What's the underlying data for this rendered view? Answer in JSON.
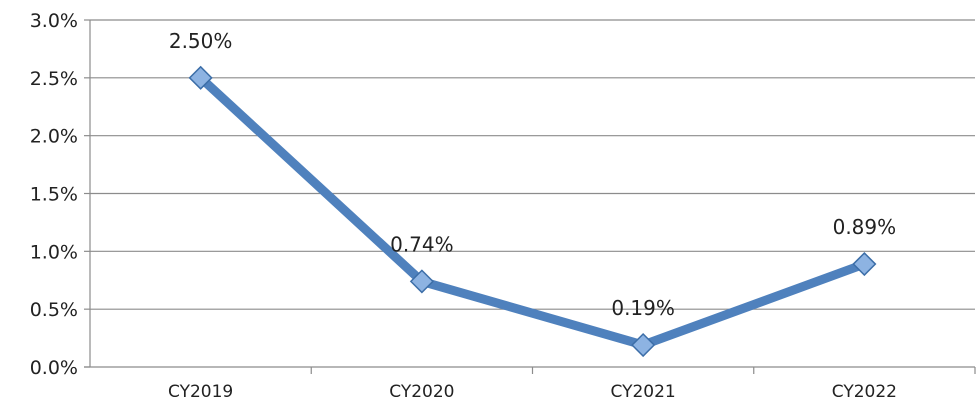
{
  "chart_data": {
    "type": "line",
    "title": "",
    "xlabel": "",
    "ylabel": "",
    "categories": [
      "CY2019",
      "CY2020",
      "CY2021",
      "CY2022"
    ],
    "series": [
      {
        "values": [
          2.5,
          0.74,
          0.19,
          0.89
        ],
        "data_labels": [
          "2.50%",
          "0.74%",
          "0.19%",
          "0.89%"
        ],
        "color": "#4F81BD"
      }
    ],
    "ylim": [
      0,
      3.0
    ],
    "yticks": [
      0.0,
      0.5,
      1.0,
      1.5,
      2.0,
      2.5,
      3.0
    ],
    "ytick_labels": [
      "0.0%",
      "0.5%",
      "1.0%",
      "1.5%",
      "2.0%",
      "2.5%",
      "3.0%"
    ],
    "grid": true,
    "legend": "none",
    "marker": "diamond"
  }
}
